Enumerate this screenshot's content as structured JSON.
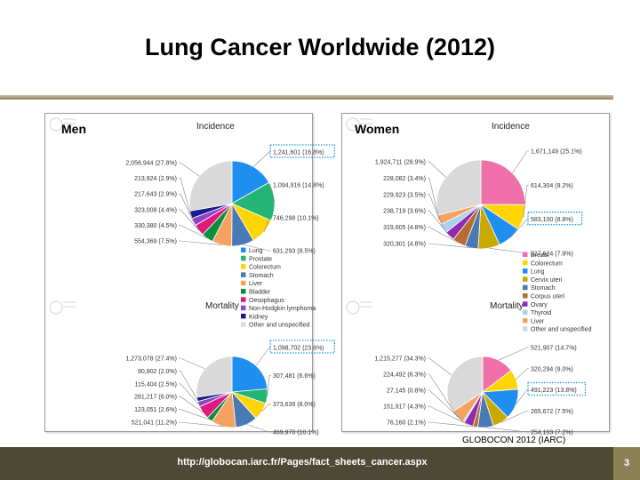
{
  "slide": {
    "title": "Lung Cancer Worldwide (2012)",
    "source": "GLOBOCON 2012 (IARC)",
    "url": "http://globocan.iarc.fr/Pages/fact_sheets_cancer.aspx",
    "page_number": "3"
  },
  "chart_data": [
    {
      "type": "pie",
      "panel": "men",
      "panel_label": "Men",
      "title": "Incidence",
      "slices": [
        {
          "label": "Lung",
          "value": 1241601,
          "text": "1,241,601 (16.8%)",
          "color": "#1f8ef1",
          "highlight": true
        },
        {
          "label": "Prostate",
          "value": 1094916,
          "text": "1,094,916 (14.8%)",
          "color": "#22b573"
        },
        {
          "label": "Colorectum",
          "value": 746298,
          "text": "746,298 (10.1%)",
          "color": "#ffd400"
        },
        {
          "label": "Stomach",
          "value": 631293,
          "text": "631,293 (8.5%)",
          "color": "#4a7ab5"
        },
        {
          "label": "Liver",
          "value": 554369,
          "text": "554,369 (7.5%)",
          "color": "#f3a261"
        },
        {
          "label": "Bladder",
          "value": 330380,
          "text": "330,380 (4.5%)",
          "color": "#0a8f3c"
        },
        {
          "label": "Oesophagus",
          "value": 323008,
          "text": "323,008 (4.4%)",
          "color": "#e0197d"
        },
        {
          "label": "Non-Hodgkin lymphoma",
          "value": 217643,
          "text": "217,643 (2.9%)",
          "color": "#8e44c9"
        },
        {
          "label": "Kidney",
          "value": 213924,
          "text": "213,924 (2.9%)",
          "color": "#1a1a8a"
        },
        {
          "label": "Other and unspecified",
          "value": 2056944,
          "text": "2,056,944 (27.8%)",
          "color": "#d9d9d9"
        }
      ]
    },
    {
      "type": "pie",
      "panel": "men",
      "title": "Mortality",
      "slices": [
        {
          "label": "Lung",
          "value": 1098702,
          "text": "1,098,702 (23.6%)",
          "color": "#1f8ef1",
          "highlight": true
        },
        {
          "label": "Prostate",
          "value": 307481,
          "text": "307,481 (6.6%)",
          "color": "#22b573"
        },
        {
          "label": "Colorectum",
          "value": 373639,
          "text": "373,639 (8.0%)",
          "color": "#ffd400"
        },
        {
          "label": "Stomach",
          "value": 469970,
          "text": "469,970 (10.1%)",
          "color": "#4a7ab5"
        },
        {
          "label": "Liver",
          "value": 521041,
          "text": "521,041 (11.2%)",
          "color": "#f3a261"
        },
        {
          "label": "Bladder",
          "value": 123051,
          "text": "123,051 (2.6%)",
          "color": "#0a8f3c"
        },
        {
          "label": "Oesophagus",
          "value": 281217,
          "text": "281,217 (6.0%)",
          "color": "#e0197d"
        },
        {
          "label": "Non-Hodgkin lymphoma",
          "value": 115404,
          "text": "115,404 (2.5%)",
          "color": "#8e44c9"
        },
        {
          "label": "Kidney",
          "value": 90802,
          "text": "90,802 (2.0%)",
          "color": "#1a1a8a"
        },
        {
          "label": "Other and unspecified",
          "value": 1273078,
          "text": "1,273,078 (27.4%)",
          "color": "#d9d9d9"
        }
      ]
    },
    {
      "type": "pie",
      "panel": "women",
      "panel_label": "Women",
      "title": "Incidence",
      "slices": [
        {
          "label": "Breast",
          "value": 1671149,
          "text": "1,671,149 (25.1%)",
          "color": "#f06eaa"
        },
        {
          "label": "Colorectum",
          "value": 614304,
          "text": "614,304 (9.2%)",
          "color": "#ffd400"
        },
        {
          "label": "Lung",
          "value": 583100,
          "text": "583,100 (8.8%)",
          "color": "#1f8ef1",
          "highlight": true
        },
        {
          "label": "Cervix uteri",
          "value": 527624,
          "text": "527,624 (7.9%)",
          "color": "#c9a800"
        },
        {
          "label": "Stomach",
          "value": 320301,
          "text": "320,301 (4.8%)",
          "color": "#4a7ab5"
        },
        {
          "label": "Corpus uteri",
          "value": 319605,
          "text": "319,605 (4.8%)",
          "color": "#b86b2e"
        },
        {
          "label": "Ovary",
          "value": 238719,
          "text": "238,719 (3.6%)",
          "color": "#8e2cb0"
        },
        {
          "label": "Thyroid",
          "value": 229923,
          "text": "229,923 (3.5%)",
          "color": "#a9d3f0"
        },
        {
          "label": "Liver",
          "value": 228082,
          "text": "228,082 (3.4%)",
          "color": "#f3a261"
        },
        {
          "label": "Other and unspecified",
          "value": 1924711,
          "text": "1,924,711 (28.9%)",
          "color": "#d9d9d9"
        }
      ]
    },
    {
      "type": "pie",
      "panel": "women",
      "title": "Mortality",
      "slices": [
        {
          "label": "Breast",
          "value": 521907,
          "text": "521,907 (14.7%)",
          "color": "#f06eaa"
        },
        {
          "label": "Colorectum",
          "value": 320294,
          "text": "320,294 (9.0%)",
          "color": "#ffd400"
        },
        {
          "label": "Lung",
          "value": 491223,
          "text": "491,223 (13.8%)",
          "color": "#1f8ef1",
          "highlight": true
        },
        {
          "label": "Cervix uteri",
          "value": 265672,
          "text": "265,672 (7.5%)",
          "color": "#c9a800"
        },
        {
          "label": "Stomach",
          "value": 254103,
          "text": "254,103 (7.2%)",
          "color": "#4a7ab5"
        },
        {
          "label": "Corpus uteri",
          "value": 76160,
          "text": "76,160 (2.1%)",
          "color": "#b86b2e"
        },
        {
          "label": "Ovary",
          "value": 151917,
          "text": "151,917 (4.3%)",
          "color": "#8e2cb0"
        },
        {
          "label": "Thyroid",
          "value": 27145,
          "text": "27,145 (0.8%)",
          "color": "#a9d3f0"
        },
        {
          "label": "Liver",
          "value": 224492,
          "text": "224,492 (6.3%)",
          "color": "#f3a261"
        },
        {
          "label": "Other and unspecified",
          "value": 1215277,
          "text": "1,215,277 (34.3%)",
          "color": "#d9d9d9"
        }
      ]
    }
  ],
  "legends": {
    "men": [
      "Lung",
      "Prostate",
      "Colorectum",
      "Stomach",
      "Liver",
      "Bladder",
      "Oesophagus",
      "Non-Hodgkin lymphoma",
      "Kidney",
      "Other and unspecified"
    ],
    "women": [
      "Breast",
      "Colorectum",
      "Lung",
      "Cervix uteri",
      "Stomach",
      "Corpus uteri",
      "Ovary",
      "Thyroid",
      "Liver",
      "Other and unspecified"
    ]
  }
}
